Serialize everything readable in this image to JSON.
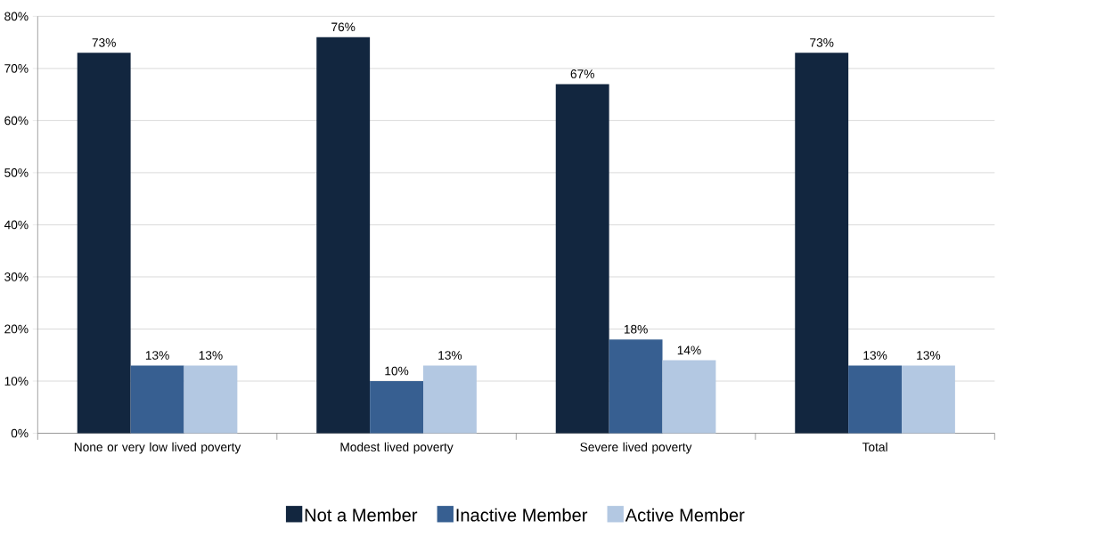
{
  "chart_data": {
    "type": "bar",
    "categories": [
      "None or very low lived poverty",
      "Modest lived poverty",
      "Severe lived poverty",
      "Total"
    ],
    "series": [
      {
        "name": "Not a Member",
        "color": "#12263f",
        "values": [
          73,
          76,
          67,
          73
        ],
        "value_labels": [
          "73%",
          "76%",
          "67%",
          "73%"
        ]
      },
      {
        "name": "Inactive Member",
        "color": "#375f91",
        "values": [
          13,
          10,
          18,
          13
        ],
        "value_labels": [
          "13%",
          "10%",
          "18%",
          "13%"
        ]
      },
      {
        "name": "Active Member",
        "color": "#b3c8e2",
        "values": [
          13,
          13,
          14,
          13
        ],
        "value_labels": [
          "13%",
          "13%",
          "14%",
          "13%"
        ]
      }
    ],
    "ylim": [
      0,
      80
    ],
    "yticks": [
      {
        "value": 0,
        "label": "0%"
      },
      {
        "value": 10,
        "label": "10%"
      },
      {
        "value": 20,
        "label": "20%"
      },
      {
        "value": 30,
        "label": "30%"
      },
      {
        "value": 40,
        "label": "40%"
      },
      {
        "value": 50,
        "label": "50%"
      },
      {
        "value": 60,
        "label": "60%"
      },
      {
        "value": 70,
        "label": "70%"
      },
      {
        "value": 80,
        "label": "80%"
      }
    ],
    "grid": "y",
    "legend": "bottom"
  }
}
